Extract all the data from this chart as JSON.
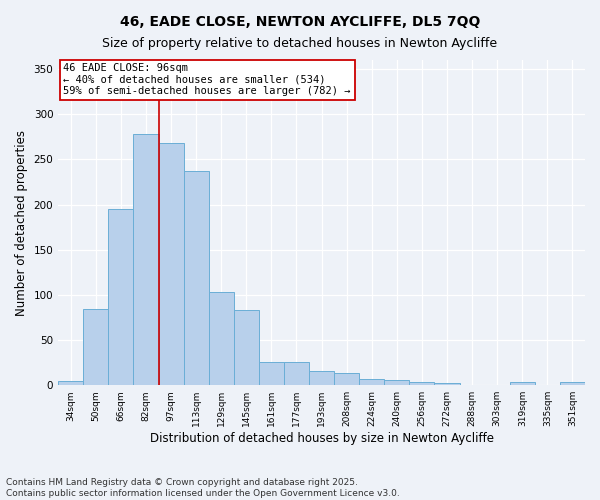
{
  "title": "46, EADE CLOSE, NEWTON AYCLIFFE, DL5 7QQ",
  "subtitle": "Size of property relative to detached houses in Newton Aycliffe",
  "xlabel": "Distribution of detached houses by size in Newton Aycliffe",
  "ylabel": "Number of detached properties",
  "categories": [
    "34sqm",
    "50sqm",
    "66sqm",
    "82sqm",
    "97sqm",
    "113sqm",
    "129sqm",
    "145sqm",
    "161sqm",
    "177sqm",
    "193sqm",
    "208sqm",
    "224sqm",
    "240sqm",
    "256sqm",
    "272sqm",
    "288sqm",
    "303sqm",
    "319sqm",
    "335sqm",
    "351sqm"
  ],
  "values": [
    5,
    84,
    195,
    278,
    268,
    237,
    103,
    83,
    26,
    26,
    16,
    13,
    7,
    6,
    3,
    2,
    0,
    0,
    3,
    0,
    3
  ],
  "bar_color": "#b8d0eb",
  "bar_edge_color": "#6aaed6",
  "red_line_index": 3.5,
  "annotation_text": "46 EADE CLOSE: 96sqm\n← 40% of detached houses are smaller (534)\n59% of semi-detached houses are larger (782) →",
  "annotation_box_color": "#ffffff",
  "annotation_box_edge_color": "#cc0000",
  "ylim": [
    0,
    360
  ],
  "yticks": [
    0,
    50,
    100,
    150,
    200,
    250,
    300,
    350
  ],
  "footer": "Contains HM Land Registry data © Crown copyright and database right 2025.\nContains public sector information licensed under the Open Government Licence v3.0.",
  "background_color": "#eef2f8",
  "grid_color": "#ffffff",
  "title_fontsize": 10,
  "subtitle_fontsize": 9,
  "axis_label_fontsize": 8.5,
  "tick_fontsize": 6.5,
  "footer_fontsize": 6.5,
  "annotation_fontsize": 7.5
}
